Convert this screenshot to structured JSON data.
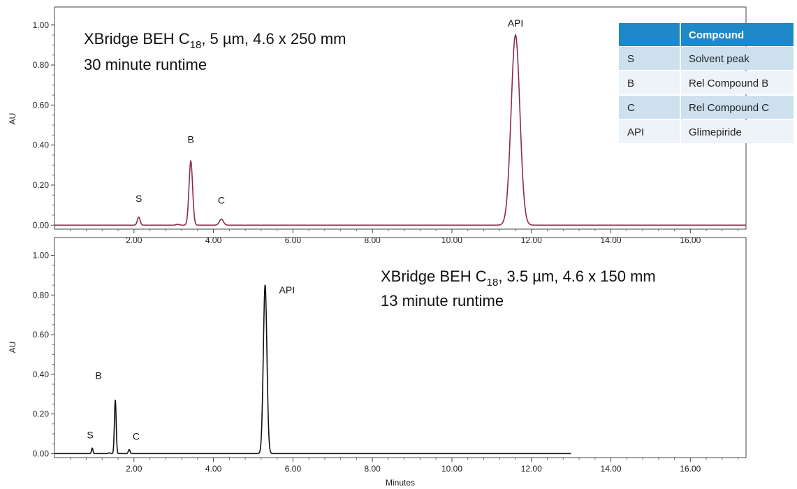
{
  "chart_data": [
    {
      "type": "line",
      "xlabel": "",
      "ylabel": "AU",
      "xlim": [
        0,
        17.4
      ],
      "ylim": [
        -0.02,
        1.09
      ],
      "x_ticks": [
        2.0,
        4.0,
        6.0,
        8.0,
        10.0,
        12.0,
        14.0,
        16.0
      ],
      "x_tick_labels": [
        "2.00",
        "4.00",
        "6.00",
        "8.00",
        "10.00",
        "12.00",
        "14.00",
        "16.00"
      ],
      "y_ticks": [
        0.0,
        0.2,
        0.4,
        0.6,
        0.8,
        1.0
      ],
      "y_tick_labels": [
        "0.00",
        "0.20",
        "0.40",
        "0.60",
        "0.80",
        "1.00"
      ],
      "grid": false,
      "x_range_data": [
        0,
        17.4
      ],
      "line_color": "#8b2a4e",
      "annotation": {
        "line1_pre": "XBridge BEH C",
        "line1_sub": "18",
        "line1_post": ", 5 µm, 4.6 x 250 mm",
        "line2": "30 minute runtime"
      },
      "peaks": [
        {
          "label": "S",
          "x": 2.12,
          "height": 0.04,
          "width": 0.035
        },
        {
          "label": "",
          "x": 3.1,
          "height": 0.004,
          "width": 0.04
        },
        {
          "label": "B",
          "x": 3.43,
          "height": 0.32,
          "width": 0.045
        },
        {
          "label": "C",
          "x": 4.2,
          "height": 0.03,
          "width": 0.05
        },
        {
          "label": "API",
          "x": 11.6,
          "height": 0.95,
          "width": 0.11
        }
      ]
    },
    {
      "type": "line",
      "xlabel": "Minutes",
      "ylabel": "AU",
      "xlim": [
        0,
        17.4
      ],
      "ylim": [
        -0.02,
        1.09
      ],
      "x_ticks": [
        2.0,
        4.0,
        6.0,
        8.0,
        10.0,
        12.0,
        14.0,
        16.0
      ],
      "x_tick_labels": [
        "2.00",
        "4.00",
        "6.00",
        "8.00",
        "10.00",
        "12.00",
        "14.00",
        "16.00"
      ],
      "y_ticks": [
        0.0,
        0.2,
        0.4,
        0.6,
        0.8,
        1.0
      ],
      "y_tick_labels": [
        "0.00",
        "0.20",
        "0.40",
        "0.60",
        "0.80",
        "1.00"
      ],
      "grid": false,
      "x_range_data": [
        0,
        13.0
      ],
      "line_color": "#111111",
      "annotation": {
        "line1_pre": "XBridge BEH C",
        "line1_sub": "18",
        "line1_post": ", 3.5 µm, 4.6 x 150 mm",
        "line2": "13 minute runtime"
      },
      "peaks": [
        {
          "label": "S",
          "x": 0.95,
          "height": 0.028,
          "width": 0.018
        },
        {
          "label": "",
          "x": 1.38,
          "height": 0.004,
          "width": 0.02
        },
        {
          "label": "B",
          "x": 1.53,
          "height": 0.27,
          "width": 0.022
        },
        {
          "label": "C",
          "x": 1.88,
          "height": 0.02,
          "width": 0.022
        },
        {
          "label": "API",
          "x": 5.3,
          "height": 0.85,
          "width": 0.045
        }
      ]
    }
  ],
  "legend_table": {
    "header": [
      "",
      "Compound"
    ],
    "rows": [
      [
        "S",
        "Solvent peak"
      ],
      [
        "B",
        "Rel Compound B"
      ],
      [
        "C",
        "Rel Compound C"
      ],
      [
        "API",
        "Glimepiride"
      ]
    ],
    "header_color": "#1e88c8",
    "row_colors": [
      "#cde0ee",
      "#eef3f8"
    ]
  }
}
